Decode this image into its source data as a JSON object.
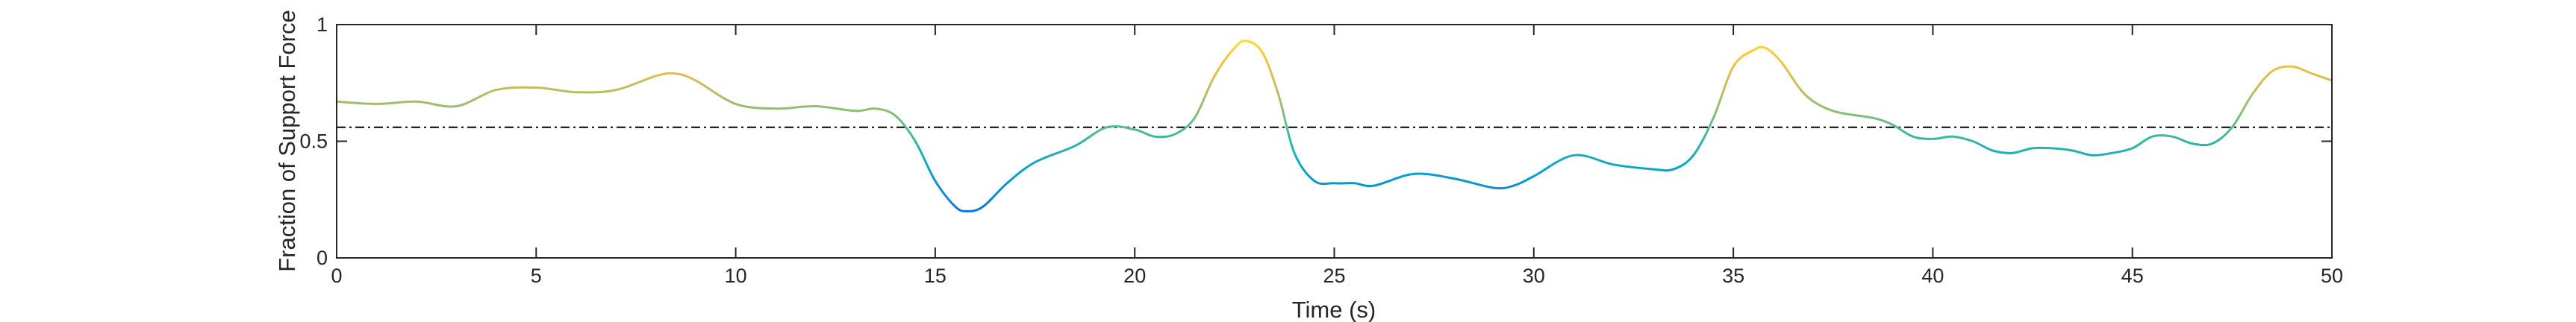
{
  "chart_data": {
    "type": "line",
    "title": "",
    "xlabel": "Time (s)",
    "ylabel": "Fraction of Support Force",
    "xlim": [
      0,
      50
    ],
    "ylim": [
      0,
      1
    ],
    "xticks": [
      0,
      5,
      10,
      15,
      20,
      25,
      30,
      35,
      40,
      45,
      50
    ],
    "yticks": [
      0,
      0.5,
      1
    ],
    "xtick_labels": [
      "0",
      "5",
      "10",
      "15",
      "20",
      "25",
      "30",
      "35",
      "40",
      "45",
      "50"
    ],
    "ytick_labels": [
      "0",
      "0.5",
      "1"
    ],
    "grid": false,
    "colormap": "parula (color mapped to y value)",
    "reference_line": {
      "style": "dash-dot",
      "color": "#000000",
      "y": 0.56
    },
    "series": [
      {
        "name": "Fraction of Support Force",
        "x": [
          0,
          1,
          2,
          3,
          4,
          5,
          6,
          7,
          8,
          8.5,
          9,
          10,
          11,
          12,
          13,
          13.5,
          14,
          14.5,
          15,
          15.5,
          15.8,
          16.2,
          16.8,
          17.5,
          18.5,
          19.3,
          20,
          20.5,
          21,
          21.5,
          22,
          22.5,
          22.8,
          23.2,
          23.6,
          24,
          24.5,
          25,
          25.5,
          26,
          27,
          28,
          29,
          29.5,
          30,
          31,
          32,
          33,
          33.5,
          34,
          34.5,
          35,
          35.5,
          35.8,
          36.2,
          36.8,
          37.5,
          38.5,
          39,
          39.5,
          40,
          40.5,
          41,
          41.5,
          42,
          42.5,
          43,
          43.5,
          44,
          44.5,
          45,
          45.5,
          46,
          46.5,
          47,
          47.5,
          48,
          48.5,
          49,
          49.5,
          50
        ],
        "y": [
          0.67,
          0.66,
          0.67,
          0.65,
          0.72,
          0.73,
          0.71,
          0.72,
          0.78,
          0.79,
          0.76,
          0.66,
          0.64,
          0.65,
          0.63,
          0.64,
          0.61,
          0.5,
          0.33,
          0.22,
          0.2,
          0.22,
          0.32,
          0.41,
          0.48,
          0.56,
          0.55,
          0.52,
          0.53,
          0.6,
          0.78,
          0.9,
          0.93,
          0.88,
          0.7,
          0.45,
          0.33,
          0.32,
          0.32,
          0.31,
          0.36,
          0.34,
          0.3,
          0.31,
          0.35,
          0.44,
          0.4,
          0.38,
          0.38,
          0.44,
          0.6,
          0.82,
          0.89,
          0.9,
          0.84,
          0.7,
          0.63,
          0.6,
          0.57,
          0.52,
          0.51,
          0.52,
          0.5,
          0.46,
          0.45,
          0.47,
          0.47,
          0.46,
          0.44,
          0.45,
          0.47,
          0.52,
          0.52,
          0.49,
          0.49,
          0.56,
          0.7,
          0.8,
          0.82,
          0.79,
          0.76
        ]
      }
    ]
  }
}
